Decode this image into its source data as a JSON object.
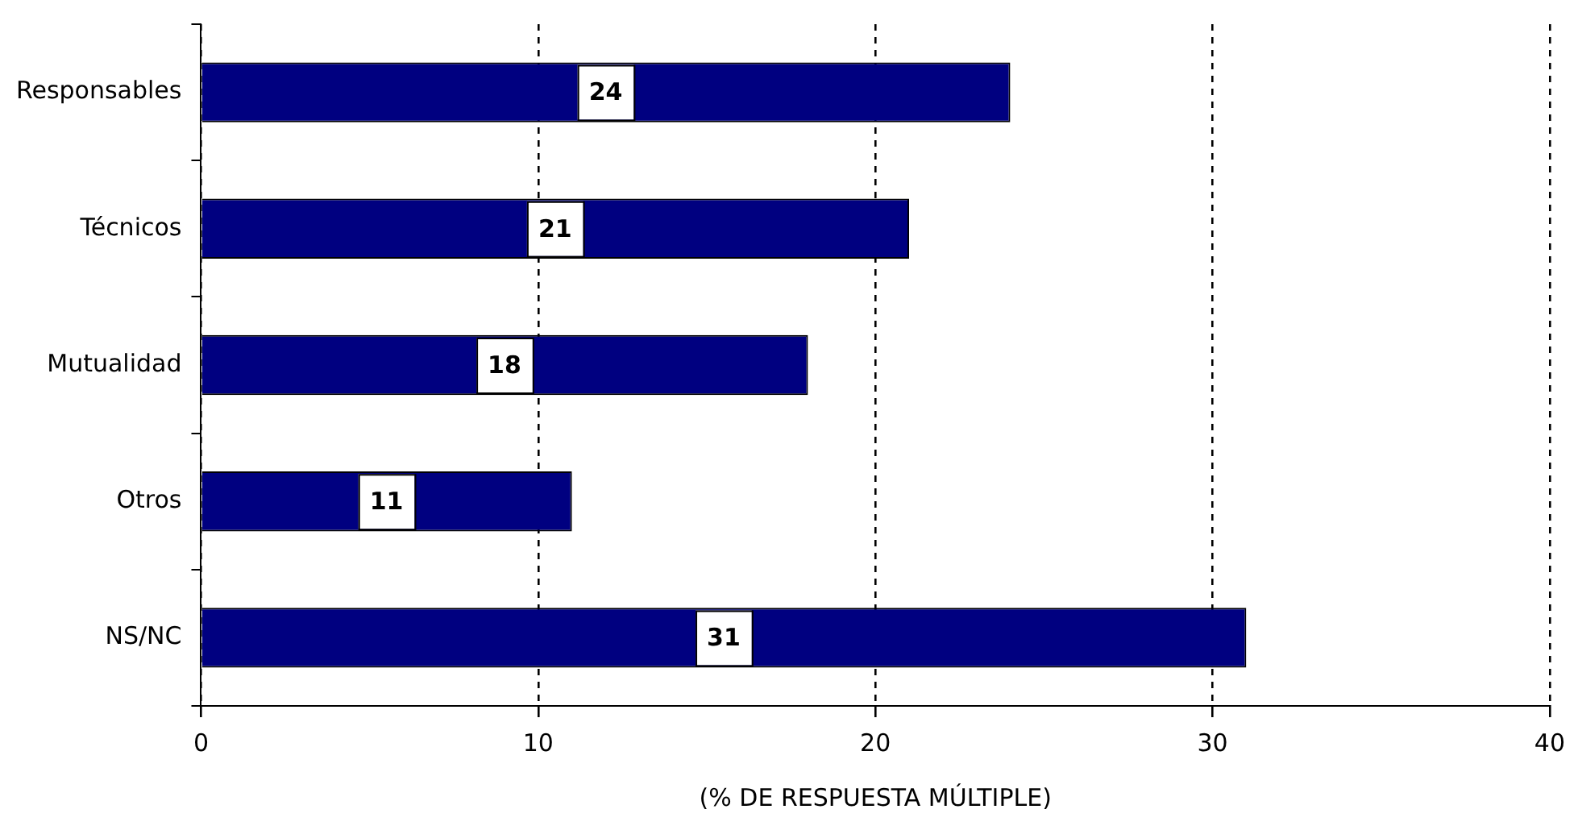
{
  "chart_data": {
    "type": "bar",
    "orientation": "horizontal",
    "xlabel": "(% DE RESPUESTA MÚLTIPLE)",
    "categories": [
      "Responsables",
      "Técnicos",
      "Mutualidad",
      "Otros",
      "NS/NC"
    ],
    "values": [
      24,
      21,
      18,
      11,
      31
    ],
    "color": "#000080",
    "xlim": [
      0,
      40
    ],
    "xticks": [
      0,
      10,
      20,
      30,
      40
    ],
    "grid": "x",
    "data_labels": true,
    "legend": false
  }
}
